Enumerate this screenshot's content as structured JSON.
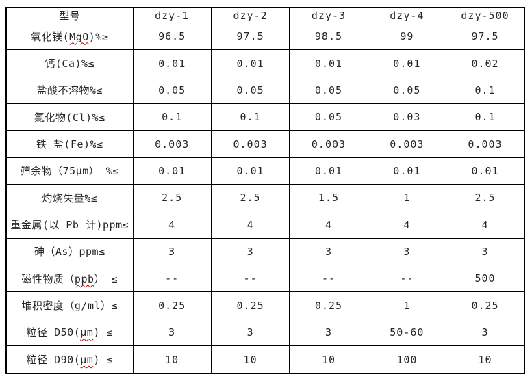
{
  "colors": {
    "background": "#ffffff",
    "border": "#000000",
    "text": "#262626",
    "squiggle_red": "#c00000"
  },
  "table": {
    "header": [
      "型号",
      "dzy-1",
      "dzy-2",
      "dzy-3",
      "dzy-4",
      "dzy-500"
    ],
    "rows": [
      {
        "label_pre": "氧化镁(",
        "label_mark": "MgO",
        "label_post": ")%≥",
        "values": [
          "96.5",
          "97.5",
          "98.5",
          "99",
          "97.5"
        ]
      },
      {
        "label_pre": "钙(Ca)%≤",
        "label_mark": "",
        "label_post": "",
        "values": [
          "0.01",
          "0.01",
          "0.01",
          "0.01",
          "0.02"
        ]
      },
      {
        "label_pre": "盐酸不溶物%≤",
        "label_mark": "",
        "label_post": "",
        "values": [
          "0.05",
          "0.05",
          "0.05",
          "0.05",
          "0.1"
        ]
      },
      {
        "label_pre": "氯化物(Cl)%≤",
        "label_mark": "",
        "label_post": "",
        "values": [
          "0.1",
          "0.1",
          "0.05",
          "0.03",
          "0.1"
        ]
      },
      {
        "label_pre": "铁 盐(Fe)%≤",
        "label_mark": "",
        "label_post": "",
        "values": [
          "0.003",
          "0.003",
          "0.003",
          "0.003",
          "0.003"
        ]
      },
      {
        "label_pre": "筛余物（75μm） %≤",
        "label_mark": "",
        "label_post": "",
        "values": [
          "0.01",
          "0.01",
          "0.01",
          "0.01",
          "0.01"
        ]
      },
      {
        "label_pre": "灼烧失量%≤",
        "label_mark": "",
        "label_post": "",
        "values": [
          "2.5",
          "2.5",
          "1.5",
          "1",
          "2.5"
        ]
      },
      {
        "label_pre": "重金属(以 Pb 计)ppm≤",
        "label_mark": "",
        "label_post": "",
        "values": [
          "4",
          "4",
          "4",
          "4",
          "4"
        ]
      },
      {
        "label_pre": "砷（As）ppm≤",
        "label_mark": "",
        "label_post": "",
        "values": [
          "3",
          "3",
          "3",
          "3",
          "3"
        ]
      },
      {
        "label_pre": "磁性物质（",
        "label_mark": "ppb",
        "label_post": "） ≤",
        "values": [
          "--",
          "--",
          "--",
          "--",
          "500"
        ]
      },
      {
        "label_pre": "堆积密度（g/ml）≤",
        "label_mark": "",
        "label_post": "",
        "values": [
          "0.25",
          "0.25",
          "0.25",
          "1",
          "0.25"
        ]
      },
      {
        "label_pre": "粒径 D50(",
        "label_mark": "μm",
        "label_post": ") ≤",
        "values": [
          "3",
          "3",
          "3",
          "50-60",
          "3"
        ]
      },
      {
        "label_pre": "粒径 D90(",
        "label_mark": "μm",
        "label_post": ") ≤",
        "values": [
          "10",
          "10",
          "10",
          "100",
          "10"
        ]
      }
    ]
  }
}
